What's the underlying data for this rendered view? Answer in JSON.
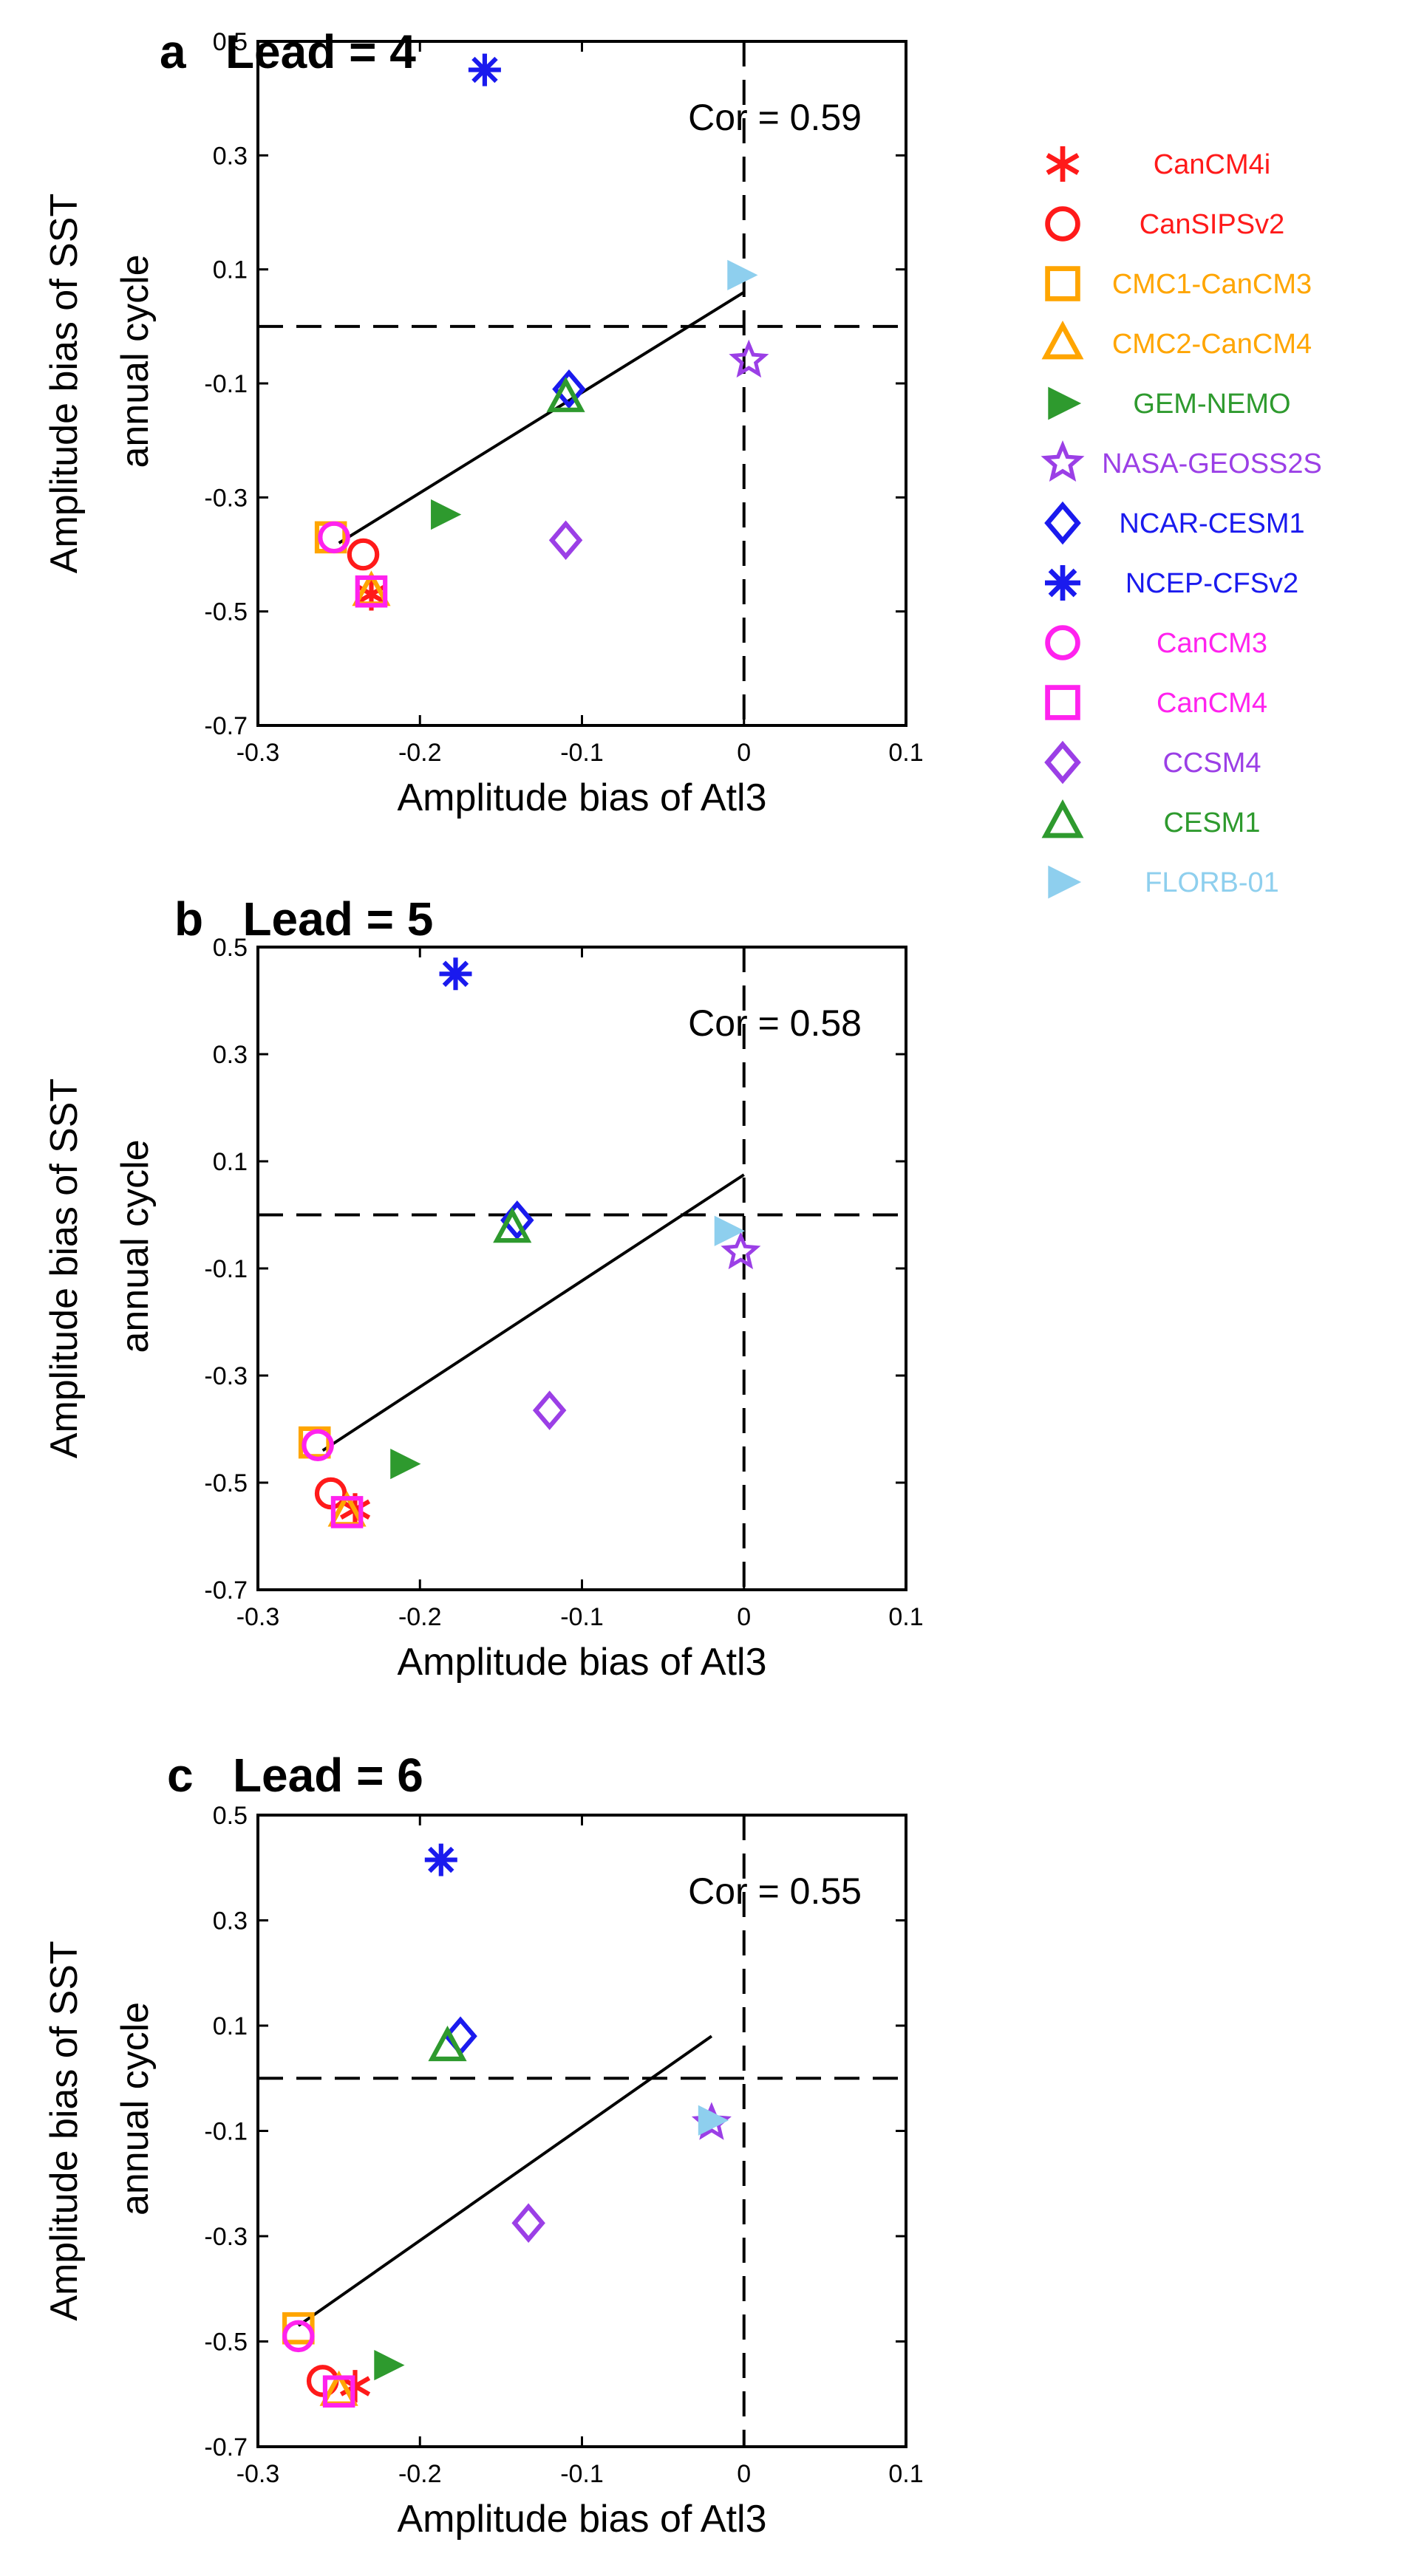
{
  "figure": {
    "legend": [
      {
        "name": "CanCM4i",
        "marker": "asterisk6",
        "color": "#ff1a1a"
      },
      {
        "name": "CanSIPSv2",
        "marker": "circle",
        "color": "#ff1a1a"
      },
      {
        "name": "CMC1-CanCM3",
        "marker": "square",
        "color": "#ffa500"
      },
      {
        "name": "CMC2-CanCM4",
        "marker": "triangle",
        "color": "#ffa500"
      },
      {
        "name": "GEM-NEMO",
        "marker": "triangle-right",
        "color": "#2e9a2e"
      },
      {
        "name": "NASA-GEOSS2S",
        "marker": "star",
        "color": "#9b3fe6"
      },
      {
        "name": "NCAR-CESM1",
        "marker": "diamond",
        "color": "#1a1aee"
      },
      {
        "name": "NCEP-CFSv2",
        "marker": "asterisk8",
        "color": "#1a1aee"
      },
      {
        "name": "CanCM3",
        "marker": "circle",
        "color": "#ff22ee"
      },
      {
        "name": "CanCM4",
        "marker": "square",
        "color": "#ff22ee"
      },
      {
        "name": "CCSM4",
        "marker": "diamond",
        "color": "#9b3fe6"
      },
      {
        "name": "CESM1",
        "marker": "triangle",
        "color": "#2e9a2e"
      },
      {
        "name": "FLORB-01",
        "marker": "triangle-right",
        "color": "#8ecfee"
      }
    ]
  },
  "chart_data": [
    {
      "type": "scatter",
      "panel": "a",
      "title": "a   Lead = 4",
      "xlabel": "Amplitude bias of Atl3",
      "ylabel": [
        "Amplitude bias of SST",
        "annual cycle"
      ],
      "xlim": [
        -0.3,
        0.1
      ],
      "ylim": [
        -0.7,
        0.5
      ],
      "xticks": [
        "-0.3",
        "-0.2",
        "-0.1",
        "0",
        "0.1"
      ],
      "xtick_values": [
        -0.3,
        -0.2,
        -0.1,
        0,
        0.1
      ],
      "yticks": [
        "0.5",
        "0.3",
        "0.1",
        "-0.1",
        "-0.3",
        "-0.5",
        "-0.7"
      ],
      "ytick_values": [
        0.5,
        0.3,
        0.1,
        -0.1,
        -0.3,
        -0.5,
        -0.7
      ],
      "annotation": "Cor = 0.59",
      "reference_lines": {
        "x": 0,
        "y": 0
      },
      "regression": {
        "x": [
          -0.25,
          0.0
        ],
        "y": [
          -0.38,
          0.06
        ]
      },
      "points": [
        {
          "model": "CanCM4i",
          "x": -0.23,
          "y": -0.47
        },
        {
          "model": "CanSIPSv2",
          "x": -0.235,
          "y": -0.4
        },
        {
          "model": "CMC1-CanCM3",
          "x": -0.255,
          "y": -0.37
        },
        {
          "model": "CMC2-CanCM4",
          "x": -0.23,
          "y": -0.465
        },
        {
          "model": "GEM-NEMO",
          "x": -0.185,
          "y": -0.33
        },
        {
          "model": "NASA-GEOSS2S",
          "x": 0.003,
          "y": -0.06
        },
        {
          "model": "NCAR-CESM1",
          "x": -0.108,
          "y": -0.11
        },
        {
          "model": "NCEP-CFSv2",
          "x": -0.16,
          "y": 0.45
        },
        {
          "model": "CanCM3",
          "x": -0.253,
          "y": -0.37
        },
        {
          "model": "CanCM4",
          "x": -0.23,
          "y": -0.465
        },
        {
          "model": "CCSM4",
          "x": -0.11,
          "y": -0.375
        },
        {
          "model": "CESM1",
          "x": -0.11,
          "y": -0.125
        },
        {
          "model": "FLORB-01",
          "x": -0.002,
          "y": 0.09
        }
      ]
    },
    {
      "type": "scatter",
      "panel": "b",
      "title": "b   Lead = 5",
      "xlabel": "Amplitude bias of Atl3",
      "ylabel": [
        "Amplitude bias of SST",
        "annual cycle"
      ],
      "xlim": [
        -0.3,
        0.1
      ],
      "ylim": [
        -0.7,
        0.5
      ],
      "xticks": [
        "-0.3",
        "-0.2",
        "-0.1",
        "0",
        "0.1"
      ],
      "xtick_values": [
        -0.3,
        -0.2,
        -0.1,
        0,
        0.1
      ],
      "yticks": [
        "0.5",
        "0.3",
        "0.1",
        "-0.1",
        "-0.3",
        "-0.5",
        "-0.7"
      ],
      "ytick_values": [
        0.5,
        0.3,
        0.1,
        -0.1,
        -0.3,
        -0.5,
        -0.7
      ],
      "annotation": "Cor = 0.58",
      "reference_lines": {
        "x": 0,
        "y": 0
      },
      "regression": {
        "x": [
          -0.26,
          0.0
        ],
        "y": [
          -0.44,
          0.075
        ]
      },
      "points": [
        {
          "model": "CanCM4i",
          "x": -0.24,
          "y": -0.55
        },
        {
          "model": "CanSIPSv2",
          "x": -0.255,
          "y": -0.52
        },
        {
          "model": "CMC1-CanCM3",
          "x": -0.265,
          "y": -0.425
        },
        {
          "model": "CMC2-CanCM4",
          "x": -0.245,
          "y": -0.555
        },
        {
          "model": "GEM-NEMO",
          "x": -0.21,
          "y": -0.465
        },
        {
          "model": "NASA-GEOSS2S",
          "x": -0.002,
          "y": -0.07
        },
        {
          "model": "NCAR-CESM1",
          "x": -0.14,
          "y": -0.01
        },
        {
          "model": "NCEP-CFSv2",
          "x": -0.178,
          "y": 0.45
        },
        {
          "model": "CanCM3",
          "x": -0.263,
          "y": -0.43
        },
        {
          "model": "CanCM4",
          "x": -0.245,
          "y": -0.555
        },
        {
          "model": "CCSM4",
          "x": -0.12,
          "y": -0.365
        },
        {
          "model": "CESM1",
          "x": -0.143,
          "y": -0.025
        },
        {
          "model": "FLORB-01",
          "x": -0.01,
          "y": -0.03
        }
      ]
    },
    {
      "type": "scatter",
      "panel": "c",
      "title": "c   Lead = 6",
      "xlabel": "Amplitude bias of Atl3",
      "ylabel": [
        "Amplitude bias of SST",
        "annual cycle"
      ],
      "xlim": [
        -0.3,
        0.1
      ],
      "ylim": [
        -0.7,
        0.5
      ],
      "xticks": [
        "-0.3",
        "-0.2",
        "-0.1",
        "0",
        "0.1"
      ],
      "xtick_values": [
        -0.3,
        -0.2,
        -0.1,
        0,
        0.1
      ],
      "yticks": [
        "0.5",
        "0.3",
        "0.1",
        "-0.1",
        "-0.3",
        "-0.5",
        "-0.7"
      ],
      "ytick_values": [
        0.5,
        0.3,
        0.1,
        -0.1,
        -0.3,
        -0.5,
        -0.7
      ],
      "annotation": "Cor = 0.55",
      "reference_lines": {
        "x": 0,
        "y": 0
      },
      "regression": {
        "x": [
          -0.275,
          -0.02
        ],
        "y": [
          -0.47,
          0.08
        ]
      },
      "points": [
        {
          "model": "CanCM4i",
          "x": -0.24,
          "y": -0.585
        },
        {
          "model": "CanSIPSv2",
          "x": -0.26,
          "y": -0.575
        },
        {
          "model": "CMC1-CanCM3",
          "x": -0.275,
          "y": -0.475
        },
        {
          "model": "CMC2-CanCM4",
          "x": -0.25,
          "y": -0.595
        },
        {
          "model": "GEM-NEMO",
          "x": -0.22,
          "y": -0.545
        },
        {
          "model": "NASA-GEOSS2S",
          "x": -0.02,
          "y": -0.085
        },
        {
          "model": "NCAR-CESM1",
          "x": -0.175,
          "y": 0.08
        },
        {
          "model": "NCEP-CFSv2",
          "x": -0.187,
          "y": 0.415
        },
        {
          "model": "CanCM3",
          "x": -0.275,
          "y": -0.49
        },
        {
          "model": "CanCM4",
          "x": -0.25,
          "y": -0.595
        },
        {
          "model": "CCSM4",
          "x": -0.133,
          "y": -0.275
        },
        {
          "model": "CESM1",
          "x": -0.183,
          "y": 0.06
        },
        {
          "model": "FLORB-01",
          "x": -0.02,
          "y": -0.08
        }
      ]
    }
  ]
}
